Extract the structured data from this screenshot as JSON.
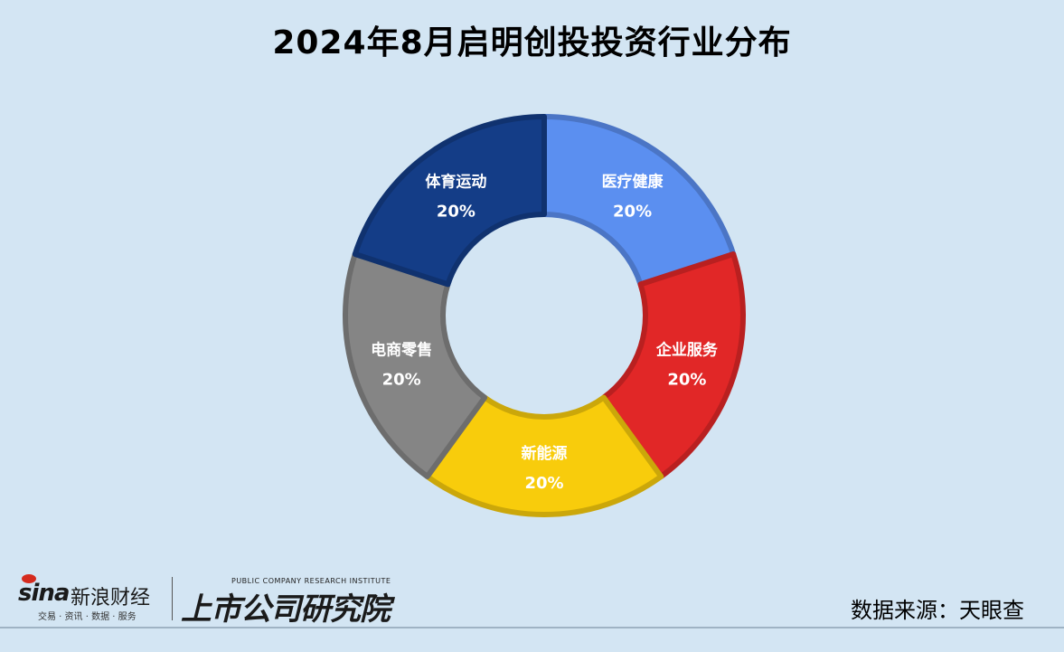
{
  "title": "2024年8月启明创投投资行业分布",
  "chart_data": {
    "type": "pie",
    "title": "2024年8月启明创投投资行业分布",
    "slices": [
      {
        "label": "医疗健康",
        "value": 20,
        "display": "20%",
        "color": "#5b8ff0"
      },
      {
        "label": "企业服务",
        "value": 20,
        "display": "20%",
        "color": "#e12727"
      },
      {
        "label": "新能源",
        "value": 20,
        "display": "20%",
        "color": "#f8cc0c"
      },
      {
        "label": "电商零售",
        "value": 20,
        "display": "20%",
        "color": "#858585"
      },
      {
        "label": "体育运动",
        "value": 20,
        "display": "20%",
        "color": "#143d87"
      }
    ]
  },
  "footer": {
    "sina_mark": "sina",
    "sina_name": "新浪财经",
    "sina_tagline": "交易 · 资讯 · 数据 · 服务",
    "research_en": "PUBLIC COMPANY RESEARCH INSTITUTE",
    "research_cn": "上市公司研究院",
    "source": "数据来源：天眼查"
  }
}
